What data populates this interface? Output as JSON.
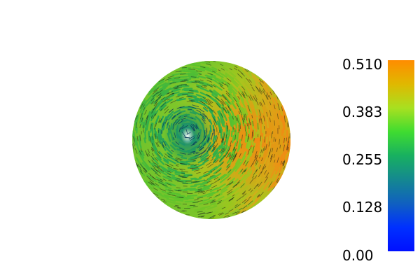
{
  "scalar_bar": {
    "labels": [
      "0.510",
      "0.383",
      "0.255",
      "0.128",
      "0.00"
    ],
    "range": [
      0.0,
      0.51
    ],
    "gradient_colors": [
      "#ff8c00",
      "#e0b800",
      "#a8e020",
      "#3fdc30",
      "#18b060",
      "#148890",
      "#1060c0",
      "#0030ff",
      "#0010ff"
    ]
  },
  "visualization": {
    "type": "vector glyph field on sphere",
    "colormap": "scalar magnitude",
    "glyph_color": "#1a1a1a"
  }
}
